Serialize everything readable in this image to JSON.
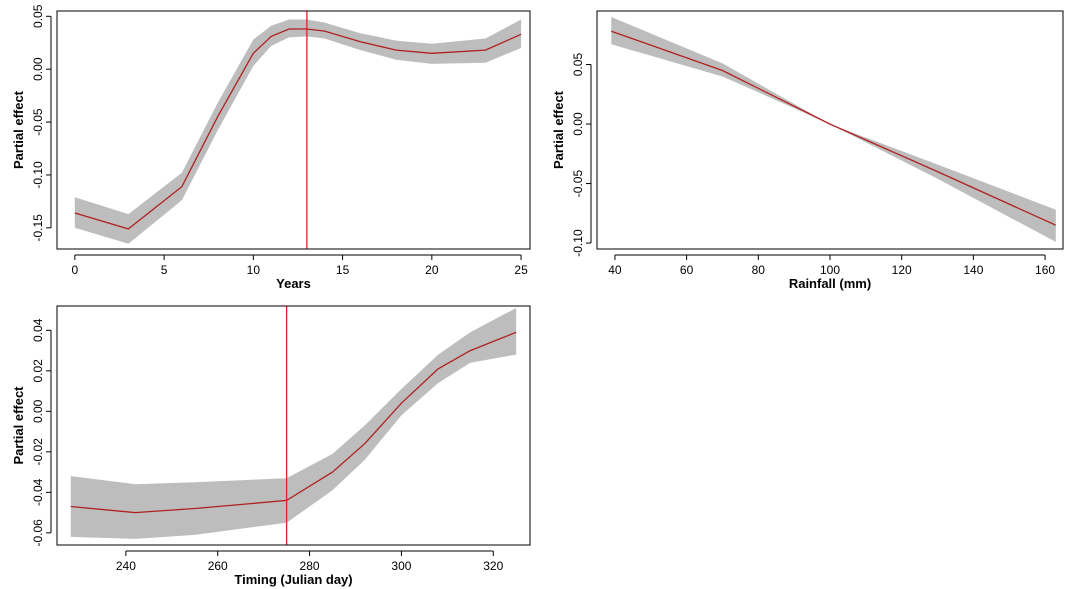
{
  "chart_data": [
    {
      "type": "line",
      "xlabel": "Years",
      "ylabel": "Partial effect",
      "xlim": [
        -1,
        25.5
      ],
      "ylim": [
        -0.17,
        0.055
      ],
      "xticks": [
        0,
        5,
        10,
        15,
        20,
        25
      ],
      "yticks": [
        -0.15,
        -0.1,
        -0.05,
        0.0,
        0.05
      ],
      "ytick_labels": [
        "-0.15",
        "-0.10",
        "-0.05",
        "0.00",
        "0.05"
      ],
      "vline": 13,
      "x": [
        0,
        3,
        6,
        8,
        10,
        11,
        12,
        13,
        14,
        16,
        18,
        20,
        23,
        25
      ],
      "y": [
        -0.136,
        -0.151,
        -0.111,
        -0.045,
        0.015,
        0.031,
        0.038,
        0.038,
        0.036,
        0.026,
        0.018,
        0.015,
        0.018,
        0.033
      ],
      "lower": [
        -0.15,
        -0.165,
        -0.124,
        -0.058,
        0.003,
        0.022,
        0.03,
        0.031,
        0.029,
        0.018,
        0.009,
        0.005,
        0.006,
        0.02
      ],
      "upper": [
        -0.121,
        -0.137,
        -0.098,
        -0.032,
        0.028,
        0.041,
        0.047,
        0.047,
        0.044,
        0.034,
        0.027,
        0.024,
        0.029,
        0.047
      ]
    },
    {
      "type": "line",
      "xlabel": "Rainfall (mm)",
      "ylabel": "Partial effect",
      "xlim": [
        35,
        165
      ],
      "ylim": [
        -0.105,
        0.095
      ],
      "xticks": [
        40,
        60,
        80,
        100,
        120,
        140,
        160
      ],
      "yticks": [
        -0.1,
        -0.05,
        0.0,
        0.05
      ],
      "ytick_labels": [
        "-0.10",
        "-0.05",
        "0.00",
        "0.05"
      ],
      "x": [
        39,
        70,
        100,
        130,
        163
      ],
      "y": [
        0.078,
        0.045,
        0.0,
        -0.04,
        -0.085
      ],
      "lower": [
        0.067,
        0.04,
        0.0,
        -0.046,
        -0.099
      ],
      "upper": [
        0.09,
        0.051,
        0.0,
        -0.034,
        -0.072
      ]
    },
    {
      "type": "line",
      "xlabel": "Timing (Julian day)",
      "ylabel": "Partial effect",
      "xlim": [
        225,
        328
      ],
      "ylim": [
        -0.066,
        0.052
      ],
      "xticks": [
        240,
        260,
        280,
        300,
        320
      ],
      "yticks": [
        -0.06,
        -0.04,
        -0.02,
        0.0,
        0.02,
        0.04
      ],
      "ytick_labels": [
        "-0.06",
        "-0.04",
        "-0.02",
        "0.00",
        "0.02",
        "0.04"
      ],
      "vline": 275,
      "x": [
        228,
        242,
        255,
        265,
        275,
        285,
        292,
        300,
        308,
        315,
        325
      ],
      "y": [
        -0.047,
        -0.05,
        -0.048,
        -0.046,
        -0.044,
        -0.03,
        -0.016,
        0.004,
        0.021,
        0.03,
        0.039
      ],
      "lower": [
        -0.062,
        -0.063,
        -0.061,
        -0.058,
        -0.055,
        -0.039,
        -0.024,
        -0.002,
        0.014,
        0.024,
        0.028
      ],
      "upper": [
        -0.032,
        -0.036,
        -0.035,
        -0.034,
        -0.033,
        -0.021,
        -0.007,
        0.011,
        0.028,
        0.039,
        0.051
      ]
    }
  ]
}
